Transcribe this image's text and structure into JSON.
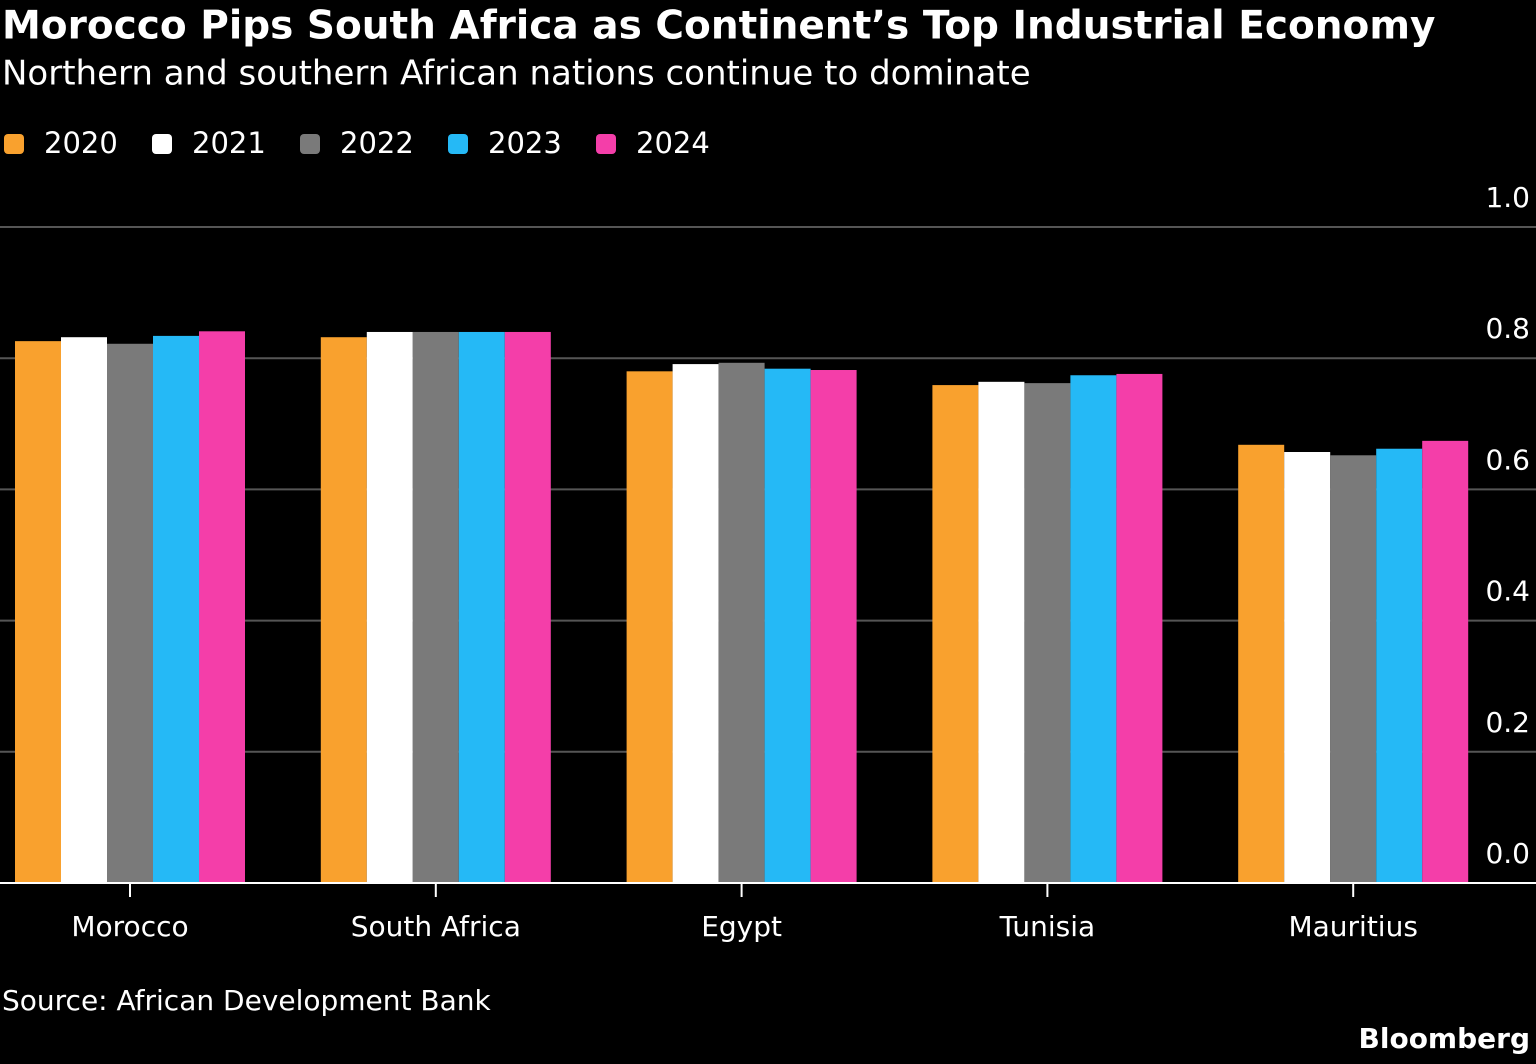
{
  "chart_data": {
    "type": "bar",
    "title": "Morocco Pips South Africa as Continent’s Top Industrial Economy",
    "subtitle": "Northern and southern African nations continue to dominate",
    "source": "Source: African Development Bank",
    "brand": "Bloomberg",
    "categories": [
      "Morocco",
      "South Africa",
      "Egypt",
      "Tunisia",
      "Mauritius"
    ],
    "series": [
      {
        "name": "2020",
        "color": "#f9a12e",
        "values": [
          0.826,
          0.832,
          0.78,
          0.759,
          0.668
        ]
      },
      {
        "name": "2021",
        "color": "#ffffff",
        "values": [
          0.832,
          0.84,
          0.791,
          0.764,
          0.657
        ]
      },
      {
        "name": "2022",
        "color": "#7a7a7a",
        "values": [
          0.822,
          0.84,
          0.793,
          0.762,
          0.652
        ]
      },
      {
        "name": "2023",
        "color": "#25b9f6",
        "values": [
          0.834,
          0.84,
          0.784,
          0.774,
          0.662
        ]
      },
      {
        "name": "2024",
        "color": "#f43ea9",
        "values": [
          0.841,
          0.84,
          0.782,
          0.776,
          0.674
        ]
      }
    ],
    "ylim": [
      0,
      1
    ],
    "yticks": [
      {
        "value": 0,
        "label": "0.0"
      },
      {
        "value": 0.2,
        "label": "0.2"
      },
      {
        "value": 0.4,
        "label": "0.4"
      },
      {
        "value": 0.6,
        "label": "0.6"
      },
      {
        "value": 0.8,
        "label": "0.8"
      },
      {
        "value": 1,
        "label": "1.0"
      }
    ],
    "grid": true
  }
}
